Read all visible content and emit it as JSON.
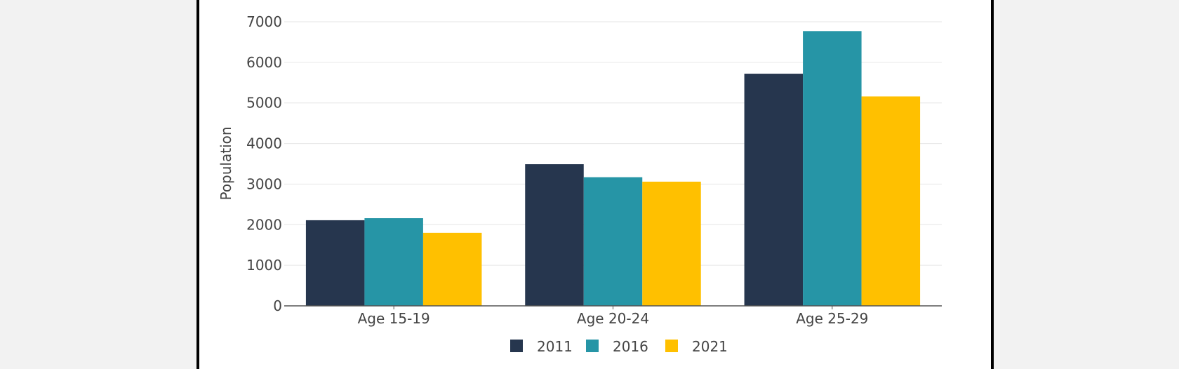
{
  "chart_data": {
    "type": "bar",
    "categories": [
      "Age 15-19",
      "Age 20-24",
      "Age 25-29"
    ],
    "series": [
      {
        "name": "2011",
        "color": "#26364e",
        "values": [
          2110,
          3490,
          5720
        ]
      },
      {
        "name": "2016",
        "color": "#2695a6",
        "values": [
          2160,
          3170,
          6770
        ]
      },
      {
        "name": "2021",
        "color": "#ffc000",
        "values": [
          1800,
          3060,
          5160
        ]
      }
    ],
    "title": "",
    "xlabel": "",
    "ylabel": "Population",
    "ylim": [
      0,
      7000
    ],
    "yticks": [
      0,
      1000,
      2000,
      3000,
      4000,
      5000,
      6000,
      7000
    ],
    "grid": true,
    "legend_position": "bottom"
  }
}
